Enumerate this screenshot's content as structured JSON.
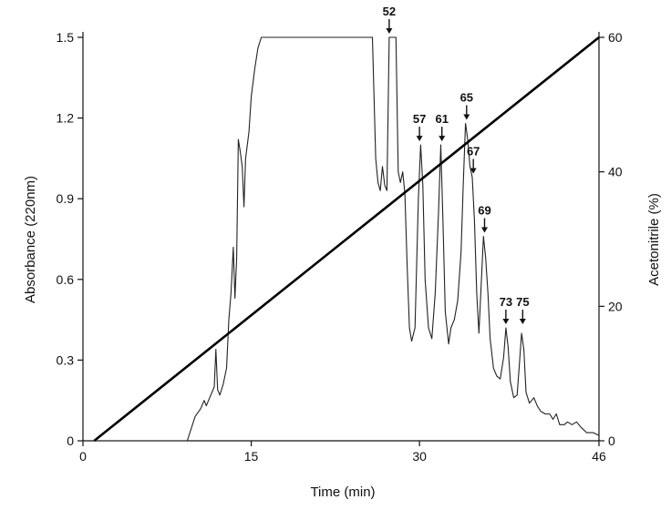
{
  "chart_data": {
    "type": "line",
    "title": "",
    "xlabel": "Time (min)",
    "ylabel_left": "Absorbance (220nm)",
    "ylabel_right": "Acetonitrile (%)",
    "xlim": [
      0,
      46
    ],
    "ylim_left": [
      0,
      1.5
    ],
    "ylim_right": [
      0,
      60
    ],
    "x_ticks": [
      0,
      15,
      30,
      46
    ],
    "y_left_ticks": [
      "0",
      "0.3",
      "0.6",
      "0.9",
      "1.2",
      "1.5"
    ],
    "y_right_ticks": [
      "0",
      "20",
      "40",
      "60"
    ],
    "grid": false,
    "series": [
      {
        "axis": "left",
        "color": "#222222",
        "points": [
          [
            1.0,
            0.0
          ],
          [
            9.3,
            0.0
          ],
          [
            10.0,
            0.09
          ],
          [
            10.5,
            0.12
          ],
          [
            10.8,
            0.15
          ],
          [
            11.0,
            0.13
          ],
          [
            11.3,
            0.16
          ],
          [
            11.5,
            0.18
          ],
          [
            11.7,
            0.2
          ],
          [
            11.85,
            0.34
          ],
          [
            12.0,
            0.19
          ],
          [
            12.2,
            0.17
          ],
          [
            12.5,
            0.21
          ],
          [
            12.8,
            0.27
          ],
          [
            13.0,
            0.45
          ],
          [
            13.2,
            0.55
          ],
          [
            13.4,
            0.72
          ],
          [
            13.55,
            0.53
          ],
          [
            13.7,
            0.68
          ],
          [
            13.85,
            1.12
          ],
          [
            14.0,
            1.08
          ],
          [
            14.2,
            1.02
          ],
          [
            14.35,
            0.87
          ],
          [
            14.5,
            1.05
          ],
          [
            14.8,
            1.15
          ],
          [
            15.0,
            1.28
          ],
          [
            15.3,
            1.38
          ],
          [
            15.6,
            1.46
          ],
          [
            15.9,
            1.5
          ],
          [
            25.8,
            1.5
          ],
          [
            26.1,
            1.05
          ],
          [
            26.3,
            0.96
          ],
          [
            26.5,
            0.93
          ],
          [
            26.7,
            1.02
          ],
          [
            26.9,
            0.95
          ],
          [
            27.1,
            0.93
          ],
          [
            27.3,
            1.5
          ],
          [
            27.9,
            1.5
          ],
          [
            28.1,
            1.0
          ],
          [
            28.3,
            0.96
          ],
          [
            28.5,
            1.0
          ],
          [
            28.7,
            0.92
          ],
          [
            28.9,
            0.65
          ],
          [
            29.1,
            0.42
          ],
          [
            29.3,
            0.37
          ],
          [
            29.6,
            0.42
          ],
          [
            29.9,
            0.9
          ],
          [
            30.1,
            1.1
          ],
          [
            30.3,
            0.95
          ],
          [
            30.5,
            0.6
          ],
          [
            30.8,
            0.42
          ],
          [
            31.1,
            0.38
          ],
          [
            31.4,
            0.55
          ],
          [
            31.7,
            0.85
          ],
          [
            31.9,
            1.1
          ],
          [
            32.1,
            0.8
          ],
          [
            32.3,
            0.48
          ],
          [
            32.6,
            0.36
          ],
          [
            32.8,
            0.42
          ],
          [
            33.1,
            0.45
          ],
          [
            33.4,
            0.52
          ],
          [
            33.7,
            0.7
          ],
          [
            33.9,
            0.95
          ],
          [
            34.1,
            1.18
          ],
          [
            34.3,
            1.12
          ],
          [
            34.5,
            1.02
          ],
          [
            34.7,
            0.98
          ],
          [
            34.9,
            0.82
          ],
          [
            35.1,
            0.55
          ],
          [
            35.3,
            0.4
          ],
          [
            35.5,
            0.58
          ],
          [
            35.7,
            0.76
          ],
          [
            35.9,
            0.68
          ],
          [
            36.1,
            0.55
          ],
          [
            36.3,
            0.38
          ],
          [
            36.6,
            0.27
          ],
          [
            36.9,
            0.24
          ],
          [
            37.2,
            0.23
          ],
          [
            37.5,
            0.31
          ],
          [
            37.7,
            0.42
          ],
          [
            37.9,
            0.35
          ],
          [
            38.1,
            0.22
          ],
          [
            38.4,
            0.16
          ],
          [
            38.7,
            0.17
          ],
          [
            38.9,
            0.28
          ],
          [
            39.1,
            0.4
          ],
          [
            39.3,
            0.34
          ],
          [
            39.5,
            0.18
          ],
          [
            39.8,
            0.14
          ],
          [
            40.2,
            0.16
          ],
          [
            40.5,
            0.13
          ],
          [
            40.8,
            0.11
          ],
          [
            41.2,
            0.1
          ],
          [
            41.6,
            0.1
          ],
          [
            41.9,
            0.08
          ],
          [
            42.2,
            0.1
          ],
          [
            42.5,
            0.06
          ],
          [
            42.9,
            0.06
          ],
          [
            43.2,
            0.07
          ],
          [
            43.6,
            0.06
          ],
          [
            44.0,
            0.07
          ],
          [
            44.4,
            0.05
          ],
          [
            44.9,
            0.03
          ],
          [
            45.5,
            0.03
          ],
          [
            46.0,
            0.02
          ]
        ]
      },
      {
        "axis": "right",
        "color": "#000000",
        "points": [
          [
            1.0,
            0.0
          ],
          [
            46.0,
            60.0
          ]
        ]
      }
    ],
    "annotations": [
      {
        "label": "52",
        "x": 27.3,
        "y": 1.5
      },
      {
        "label": "57",
        "x": 30.0,
        "y": 1.1
      },
      {
        "label": "61",
        "x": 32.0,
        "y": 1.1
      },
      {
        "label": "65",
        "x": 34.2,
        "y": 1.18
      },
      {
        "label": "67",
        "x": 34.8,
        "y": 0.98
      },
      {
        "label": "69",
        "x": 35.8,
        "y": 0.76
      },
      {
        "label": "73",
        "x": 37.7,
        "y": 0.42
      },
      {
        "label": "75",
        "x": 39.2,
        "y": 0.42
      }
    ]
  }
}
